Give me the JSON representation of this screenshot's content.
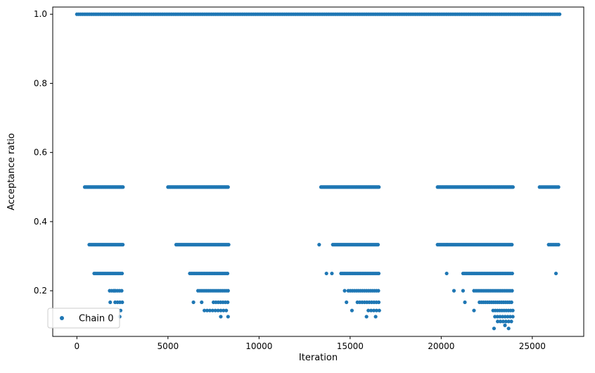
{
  "chart_data": {
    "type": "scatter",
    "title": "",
    "xlabel": "Iteration",
    "ylabel": "Acceptance ratio",
    "xlim": [
      -1325,
      27825
    ],
    "ylim": [
      0.0679,
      1.0208
    ],
    "x_ticks": [
      0,
      5000,
      10000,
      15000,
      20000,
      25000
    ],
    "x_tick_labels": [
      "0",
      "5000",
      "10000",
      "15000",
      "20000",
      "25000"
    ],
    "y_ticks": [
      0.2,
      0.4,
      0.6,
      0.8,
      1.0
    ],
    "y_tick_labels": [
      "0.2",
      "0.4",
      "0.6",
      "0.8",
      "1.0"
    ],
    "grid": false,
    "legend_position": "lower-left",
    "marker_color": "#1f77b4",
    "series": [
      {
        "name": "Chain 0",
        "color": "#1f77b4",
        "segments": [
          {
            "y": 1.0,
            "x_start": 0,
            "x_end": 26500,
            "step": 100
          },
          {
            "y": 0.5,
            "x_start": 430,
            "x_end": 2550,
            "step": 60
          },
          {
            "y": 0.5,
            "x_start": 5000,
            "x_end": 8330,
            "step": 60
          },
          {
            "y": 0.5,
            "x_start": 13400,
            "x_end": 16600,
            "step": 60
          },
          {
            "y": 0.5,
            "x_start": 19800,
            "x_end": 23950,
            "step": 60
          },
          {
            "y": 0.5,
            "x_start": 25400,
            "x_end": 26500,
            "step": 80
          },
          {
            "y": 0.3333,
            "x_start": 680,
            "x_end": 2550,
            "step": 80
          },
          {
            "y": 0.3333,
            "x_start": 5450,
            "x_end": 8330,
            "step": 80
          },
          {
            "y": 0.3333,
            "x_start": 14050,
            "x_end": 16600,
            "step": 80
          },
          {
            "y": 0.3333,
            "x_start": 19800,
            "x_end": 23950,
            "step": 80
          },
          {
            "y": 0.3333,
            "x_start": 25900,
            "x_end": 26500,
            "step": 90
          },
          {
            "y": 0.25,
            "x_start": 950,
            "x_end": 2550,
            "step": 90
          },
          {
            "y": 0.25,
            "x_start": 6200,
            "x_end": 8330,
            "step": 90
          },
          {
            "y": 0.25,
            "x_start": 14500,
            "x_end": 16600,
            "step": 90
          },
          {
            "y": 0.25,
            "x_start": 21200,
            "x_end": 23950,
            "step": 90
          },
          {
            "y": 0.2,
            "x_start": 1800,
            "x_end": 2550,
            "step": 110
          },
          {
            "y": 0.2,
            "x_start": 6650,
            "x_end": 8330,
            "step": 110
          },
          {
            "y": 0.2,
            "x_start": 14900,
            "x_end": 16600,
            "step": 110
          },
          {
            "y": 0.2,
            "x_start": 21800,
            "x_end": 23950,
            "step": 110
          },
          {
            "y": 0.1667,
            "x_start": 2100,
            "x_end": 2550,
            "step": 130
          },
          {
            "y": 0.1667,
            "x_start": 7500,
            "x_end": 8330,
            "step": 130
          },
          {
            "y": 0.1667,
            "x_start": 15400,
            "x_end": 16600,
            "step": 130
          },
          {
            "y": 0.1667,
            "x_start": 22100,
            "x_end": 23950,
            "step": 110
          },
          {
            "y": 0.1429,
            "x_start": 7000,
            "x_end": 8330,
            "step": 150
          },
          {
            "y": 0.1429,
            "x_start": 16000,
            "x_end": 16600,
            "step": 150
          },
          {
            "y": 0.1429,
            "x_start": 22850,
            "x_end": 23950,
            "step": 120
          },
          {
            "y": 0.125,
            "x_start": 22950,
            "x_end": 23950,
            "step": 140
          },
          {
            "y": 0.1111,
            "x_start": 23100,
            "x_end": 23950,
            "step": 150
          }
        ],
        "points": [
          [
            1830,
            0.1667
          ],
          [
            2050,
            0.2
          ],
          [
            2400,
            0.1429
          ],
          [
            2350,
            0.125
          ],
          [
            6400,
            0.1667
          ],
          [
            6850,
            0.1667
          ],
          [
            7900,
            0.125
          ],
          [
            8300,
            0.125
          ],
          [
            13300,
            0.3333
          ],
          [
            13700,
            0.25
          ],
          [
            14000,
            0.25
          ],
          [
            14700,
            0.2
          ],
          [
            14800,
            0.1667
          ],
          [
            15100,
            0.1429
          ],
          [
            15900,
            0.125
          ],
          [
            16400,
            0.125
          ],
          [
            20300,
            0.25
          ],
          [
            20700,
            0.2
          ],
          [
            21200,
            0.2
          ],
          [
            21300,
            0.1667
          ],
          [
            21800,
            0.1429
          ],
          [
            22900,
            0.0909
          ],
          [
            23500,
            0.1
          ],
          [
            23700,
            0.0909
          ],
          [
            26300,
            0.25
          ]
        ]
      }
    ]
  }
}
